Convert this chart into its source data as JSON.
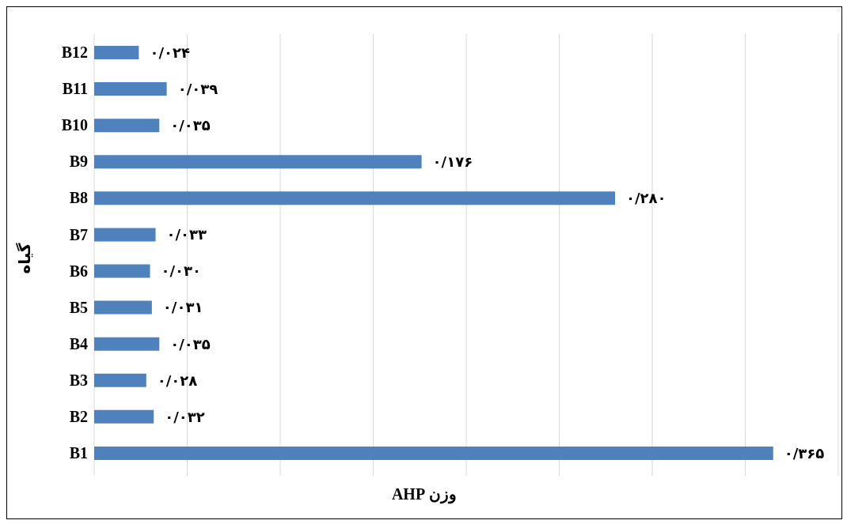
{
  "chart_data": {
    "type": "bar",
    "orientation": "horizontal",
    "xlabel": "وزن AHP",
    "ylabel": "گیاه",
    "categories": [
      "B12",
      "B11",
      "B10",
      "B9",
      "B8",
      "B7",
      "B6",
      "B5",
      "B4",
      "B3",
      "B2",
      "B1"
    ],
    "values": [
      0.024,
      0.039,
      0.035,
      0.176,
      0.28,
      0.033,
      0.03,
      0.031,
      0.035,
      0.028,
      0.032,
      0.365
    ],
    "value_labels": [
      "۰/۰۲۴",
      "۰/۰۳۹",
      "۰/۰۳۵",
      "۰/۱۷۶",
      "۰/۲۸۰",
      "۰/۰۳۳",
      "۰/۰۳۰",
      "۰/۰۳۱",
      "۰/۰۳۵",
      "۰/۰۲۸",
      "۰/۰۳۲",
      "۰/۳۶۵"
    ],
    "color": "#4f81bd",
    "grid": "x",
    "legend": false,
    "tick_labels": "y"
  }
}
